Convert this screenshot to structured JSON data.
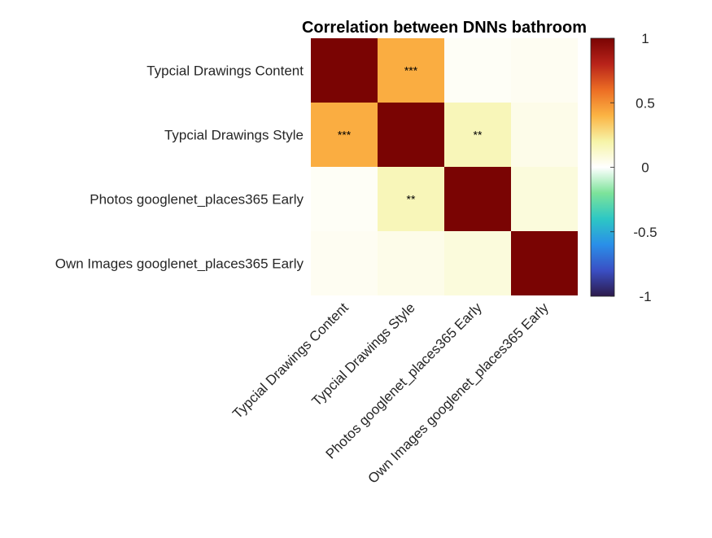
{
  "chart_data": {
    "type": "heatmap",
    "title": "Correlation between DNNs bathroom",
    "row_labels": [
      "Typcial Drawings Content",
      "Typcial Drawings Style",
      "Photos googlenet_places365 Early",
      "Own Images googlenet_places365 Early"
    ],
    "col_labels": [
      "Typcial Drawings Content",
      "Typcial Drawings Style",
      "Photos googlenet_places365 Early",
      "Own Images googlenet_places365 Early"
    ],
    "values": [
      [
        1.0,
        0.42,
        0.02,
        0.03
      ],
      [
        0.42,
        1.0,
        0.16,
        0.05
      ],
      [
        0.02,
        0.16,
        1.0,
        0.08
      ],
      [
        0.03,
        0.05,
        0.08,
        1.0
      ]
    ],
    "significance": [
      [
        "",
        "***",
        "",
        ""
      ],
      [
        "***",
        "",
        "**",
        ""
      ],
      [
        "",
        "**",
        "",
        ""
      ],
      [
        "",
        "",
        "",
        ""
      ]
    ],
    "colorbar": {
      "range": [
        -1,
        1
      ],
      "ticks": [
        "1",
        "0.5",
        "0",
        "-0.5",
        "-1"
      ],
      "colormap": [
        "#2d1a4b",
        "#3a4fc4",
        "#2a8fe8",
        "#2dc7c4",
        "#7de39a",
        "#ffffff",
        "#f6f4a8",
        "#fbb444",
        "#ec6d24",
        "#b8231a",
        "#7a0403"
      ]
    }
  }
}
